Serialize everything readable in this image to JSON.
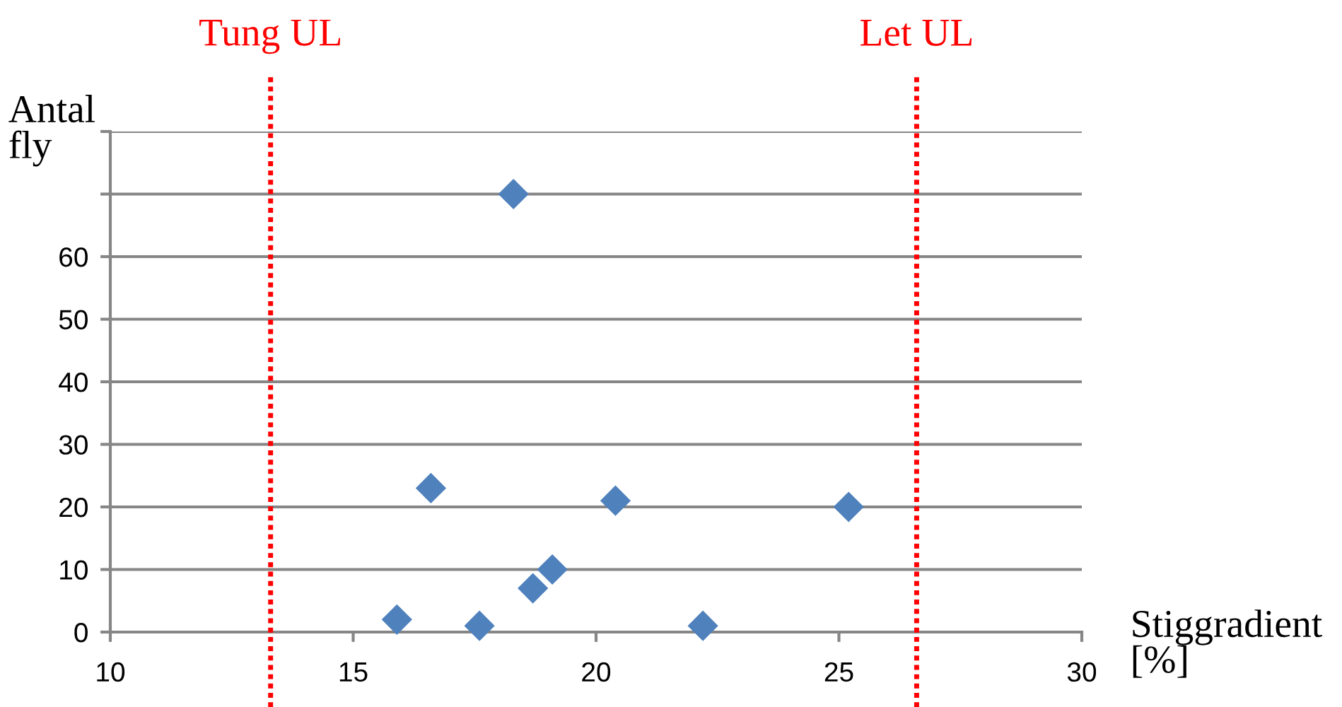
{
  "chart_data": {
    "type": "scatter",
    "xlabel": "Stiggradient [%]",
    "ylabel": "Antal fly",
    "x": [
      15.9,
      16.6,
      17.6,
      18.3,
      18.7,
      19.1,
      20.4,
      22.2,
      25.2
    ],
    "values": [
      2,
      23,
      1,
      70,
      7,
      10,
      21,
      1,
      20
    ],
    "color": "#4f81bd",
    "marker": "diamond",
    "legend": false,
    "xlim": [
      10,
      30
    ],
    "xticks": [
      10,
      15,
      20,
      25,
      30
    ],
    "ylim": [
      0,
      80
    ],
    "yticks": [
      0,
      10,
      20,
      30,
      40,
      50,
      60,
      {
        "value": 70,
        "label": null
      },
      {
        "value": 80,
        "label": null
      }
    ],
    "grid": "y",
    "ref_lines": [
      {
        "axis": "x",
        "value": 13.3,
        "label": "Tung UL",
        "color": "#ff0000",
        "line_style": "dotted"
      },
      {
        "axis": "x",
        "value": 26.6,
        "label": "Let UL",
        "color": "#ff0000",
        "line_style": "dotted"
      }
    ]
  }
}
